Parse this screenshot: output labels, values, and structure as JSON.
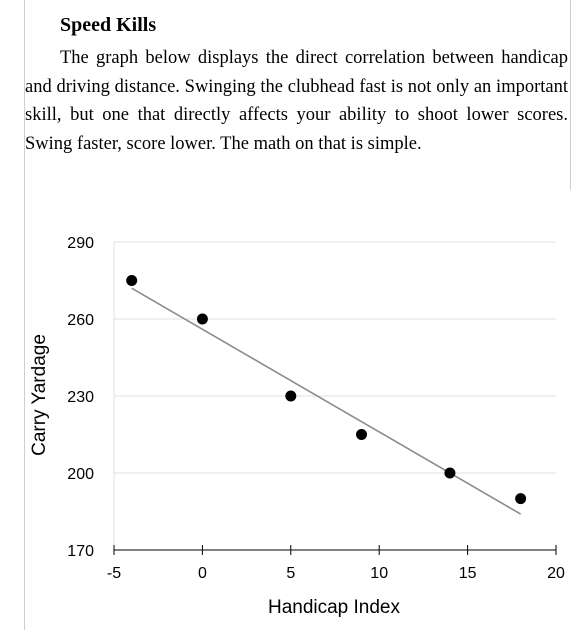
{
  "section": {
    "heading": "Speed Kills",
    "paragraph": "The graph below displays the direct correlation between handicap and driving distance. Swinging the clubhead fast is not only an important skill, but one that directly affects your ability to shoot lower scores. Swing faster, score lower. The math on that is simple."
  },
  "chart_data": {
    "type": "scatter",
    "title": "",
    "xlabel": "Handicap Index",
    "ylabel": "Carry Yardage",
    "xlim": [
      -5,
      20
    ],
    "ylim": [
      170,
      290
    ],
    "x_ticks": [
      -5,
      0,
      5,
      10,
      15,
      20
    ],
    "y_ticks": [
      170,
      200,
      230,
      260,
      290
    ],
    "grid": true,
    "legend": "none",
    "series": [
      {
        "x": [
          -4,
          0,
          5,
          9,
          14,
          18
        ],
        "y": [
          275,
          260,
          230,
          215,
          200,
          190
        ]
      }
    ],
    "trendline": {
      "x": [
        -4,
        18
      ],
      "y": [
        272,
        184
      ]
    },
    "colors": {
      "points": "#000000",
      "trendline": "#8c8c8c",
      "grid": "#e2e2e2",
      "axis": "#000000"
    }
  }
}
